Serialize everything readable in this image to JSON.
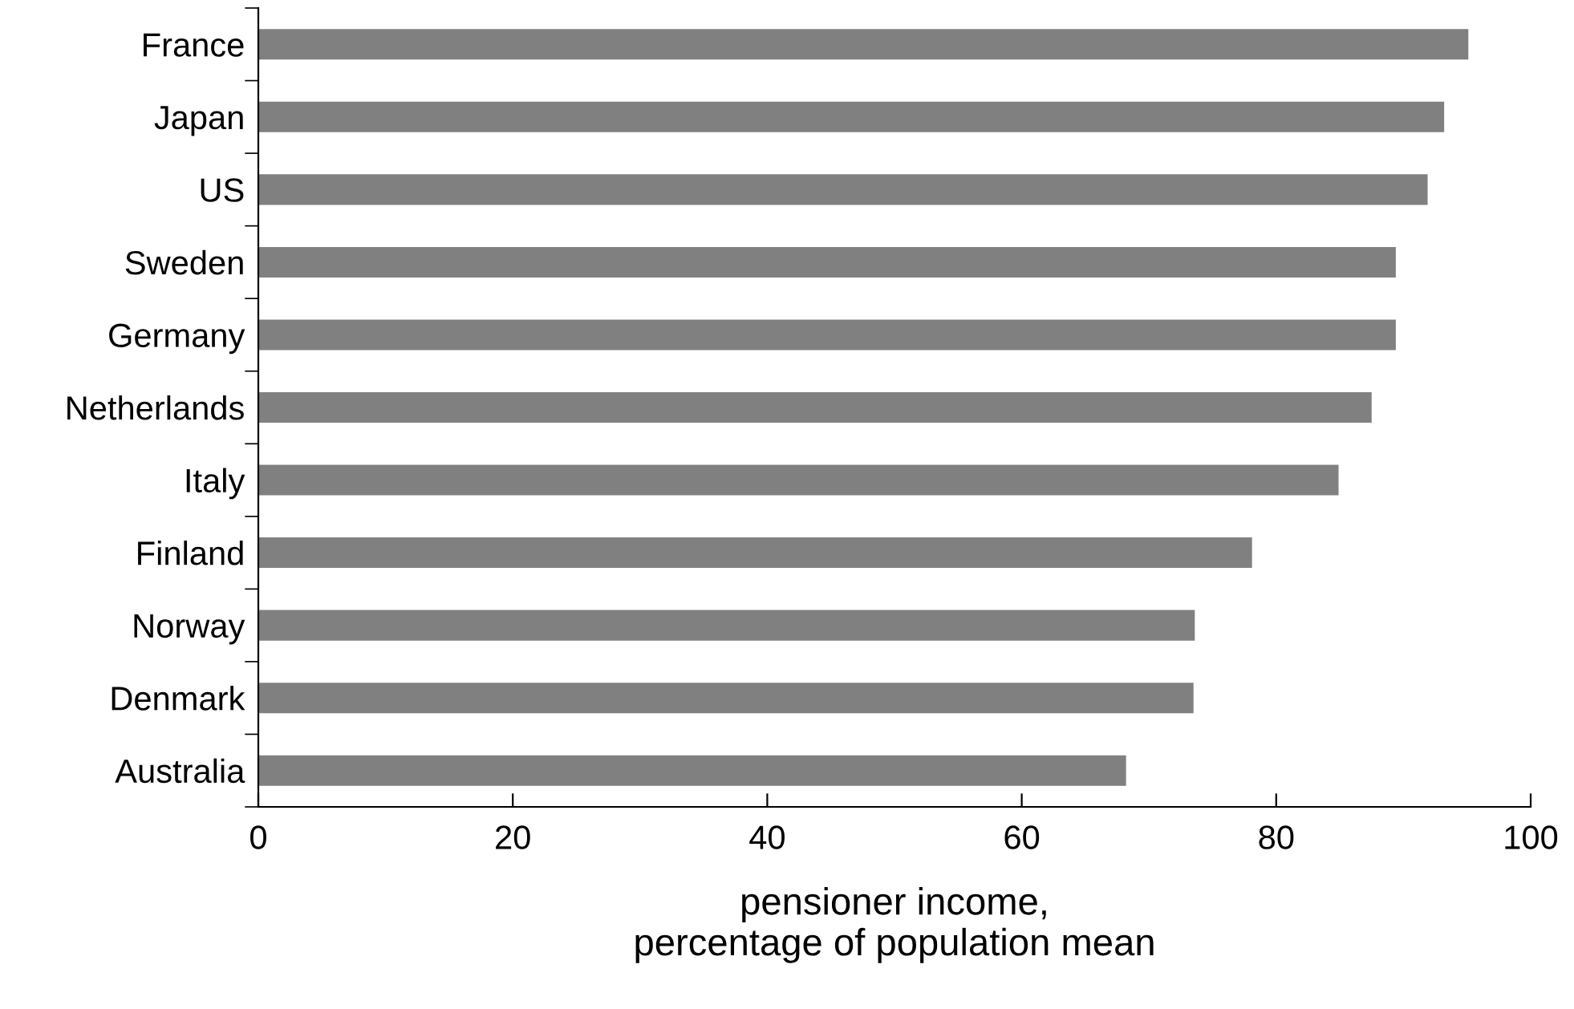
{
  "chart_data": {
    "type": "bar",
    "orientation": "horizontal",
    "xlabel": "pensioner income,\npercentage of population mean",
    "categories": [
      "France",
      "Japan",
      "US",
      "Sweden",
      "Germany",
      "Netherlands",
      "Italy",
      "Finland",
      "Norway",
      "Denmark",
      "Australia"
    ],
    "values": [
      95.1,
      93.2,
      91.9,
      89.4,
      89.4,
      87.5,
      84.9,
      78.1,
      73.6,
      73.5,
      68.2
    ],
    "color": "#808080",
    "xlim": [
      0,
      100
    ],
    "xticks": [
      0,
      20,
      40,
      60,
      80,
      100
    ],
    "grid": false
  }
}
